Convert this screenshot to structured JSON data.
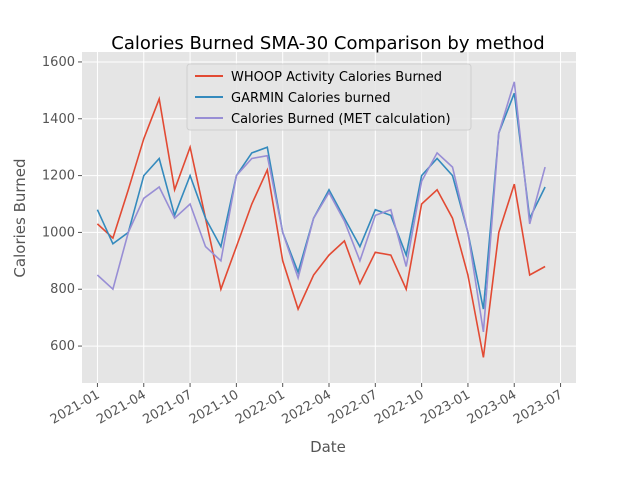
{
  "chart_data": {
    "type": "line",
    "title": "Calories Burned SMA-30 Comparison by method",
    "x_label": "Date",
    "y_label": "Calories Burned",
    "x": [
      "2021-01",
      "2021-02",
      "2021-03",
      "2021-04",
      "2021-05",
      "2021-06",
      "2021-07",
      "2021-08",
      "2021-09",
      "2021-10",
      "2021-11",
      "2021-12",
      "2022-01",
      "2022-02",
      "2022-03",
      "2022-04",
      "2022-05",
      "2022-06",
      "2022-07",
      "2022-08",
      "2022-09",
      "2022-10",
      "2022-11",
      "2022-12",
      "2023-01",
      "2023-02",
      "2023-03",
      "2023-04",
      "2023-05",
      "2023-06"
    ],
    "series": [
      {
        "name": "WHOOP Activity Calories Burned",
        "color": "#E24A33",
        "values": [
          1030,
          980,
          1150,
          1330,
          1470,
          1150,
          1300,
          1050,
          800,
          950,
          1100,
          1220,
          900,
          730,
          850,
          920,
          970,
          820,
          930,
          920,
          800,
          1100,
          1150,
          1050,
          850,
          560,
          1000,
          1170,
          850,
          880
        ]
      },
      {
        "name": "GARMIN Calories burned",
        "color": "#348ABD",
        "values": [
          1080,
          960,
          1000,
          1200,
          1260,
          1060,
          1200,
          1050,
          950,
          1200,
          1280,
          1300,
          1000,
          860,
          1050,
          1150,
          1050,
          950,
          1080,
          1060,
          920,
          1200,
          1260,
          1200,
          1000,
          730,
          1350,
          1490,
          1050,
          1160
        ]
      },
      {
        "name": "Calories Burned (MET calculation)",
        "color": "#988ED5",
        "values": [
          850,
          800,
          1000,
          1120,
          1160,
          1050,
          1100,
          950,
          900,
          1200,
          1260,
          1270,
          1000,
          840,
          1050,
          1140,
          1040,
          900,
          1060,
          1080,
          880,
          1180,
          1280,
          1230,
          1000,
          650,
          1350,
          1530,
          1030,
          1230
        ]
      }
    ],
    "xlim": [
      "2020-12",
      "2023-08"
    ],
    "xticks": [
      "2021-01",
      "2021-04",
      "2021-07",
      "2021-10",
      "2022-01",
      "2022-04",
      "2022-07",
      "2022-10",
      "2023-01",
      "2023-04",
      "2023-07"
    ],
    "ylim": [
      470,
      1635
    ],
    "yticks": [
      600,
      800,
      1000,
      1200,
      1400,
      1600
    ],
    "grid": true,
    "legend": "upper center"
  }
}
